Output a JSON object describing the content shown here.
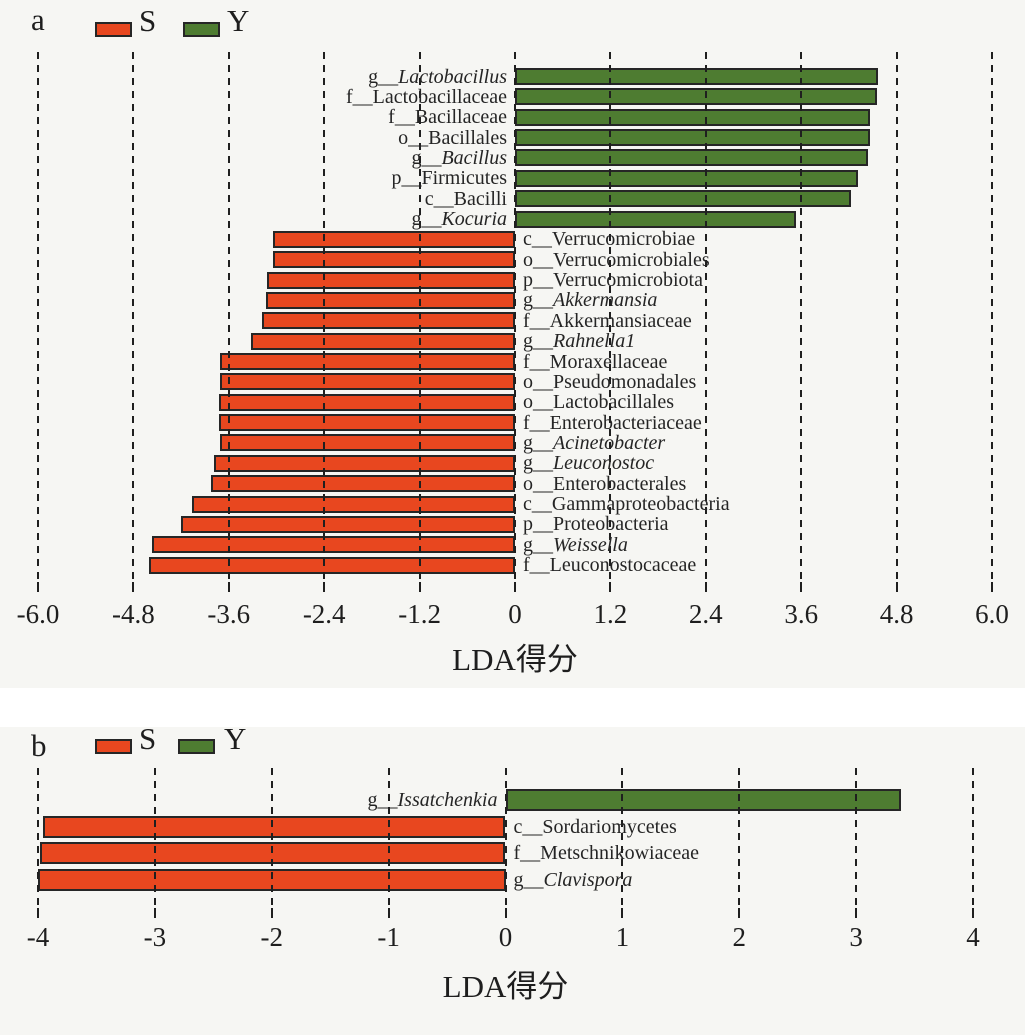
{
  "colors": {
    "s": "#e8471f",
    "y": "#4e7c31",
    "outline": "#262626",
    "grid": "#1f1f1f",
    "text": "#1e1e1e",
    "panel_bg": "#f6f6f3"
  },
  "chart_data": [
    {
      "type": "bar",
      "panel": "a",
      "orientation": "horizontal",
      "xlabel": "LDA得分",
      "xlim": [
        -6.0,
        6.0
      ],
      "xticks": [
        -6.0,
        -4.8,
        -3.6,
        -2.4,
        -1.2,
        0,
        1.2,
        2.4,
        3.6,
        4.8,
        6.0
      ],
      "xtick_labels": [
        "-6.0",
        "-4.8",
        "-3.6",
        "-2.4",
        "-1.2",
        "0",
        "1.2",
        "2.4",
        "3.6",
        "4.8",
        "6.0"
      ],
      "grid": "dashed-vertical",
      "legend": [
        {
          "name": "S",
          "color": "#e8471f"
        },
        {
          "name": "Y",
          "color": "#4e7c31"
        }
      ],
      "bars": [
        {
          "prefix": "g__",
          "name": "Lactobacillus",
          "italic": true,
          "group": "Y",
          "value": 4.56
        },
        {
          "prefix": "f__",
          "name": "Lactobacillaceae",
          "italic": false,
          "group": "Y",
          "value": 4.55
        },
        {
          "prefix": "f__",
          "name": "Bacillaceae",
          "italic": false,
          "group": "Y",
          "value": 4.47
        },
        {
          "prefix": "o__",
          "name": "Bacillales",
          "italic": false,
          "group": "Y",
          "value": 4.46
        },
        {
          "prefix": "g__",
          "name": "Bacillus",
          "italic": true,
          "group": "Y",
          "value": 4.44
        },
        {
          "prefix": "p__",
          "name": "Firmicutes",
          "italic": false,
          "group": "Y",
          "value": 4.31
        },
        {
          "prefix": "c__",
          "name": "Bacilli",
          "italic": false,
          "group": "Y",
          "value": 4.23
        },
        {
          "prefix": "g__",
          "name": "Kocuria",
          "italic": true,
          "group": "Y",
          "value": 3.54
        },
        {
          "prefix": "c__",
          "name": "Verrucomicrobiae",
          "italic": false,
          "group": "S",
          "value": -3.04
        },
        {
          "prefix": "o__",
          "name": "Verrucomicrobiales",
          "italic": false,
          "group": "S",
          "value": -3.05
        },
        {
          "prefix": "p__",
          "name": "Verrucomicrobiota",
          "italic": false,
          "group": "S",
          "value": -3.12
        },
        {
          "prefix": "g__",
          "name": "Akkermansia",
          "italic": true,
          "group": "S",
          "value": -3.13
        },
        {
          "prefix": "f__",
          "name": "Akkermansiaceae",
          "italic": false,
          "group": "S",
          "value": -3.18
        },
        {
          "prefix": "g__",
          "name": "Rahnella1",
          "italic": true,
          "group": "S",
          "value": -3.32
        },
        {
          "prefix": "f__",
          "name": "Moraxellaceae",
          "italic": false,
          "group": "S",
          "value": -3.71
        },
        {
          "prefix": "o__",
          "name": "Pseudomonadales",
          "italic": false,
          "group": "S",
          "value": -3.71
        },
        {
          "prefix": "o__",
          "name": "Lactobacillales",
          "italic": false,
          "group": "S",
          "value": -3.72
        },
        {
          "prefix": "f__",
          "name": "Enterobacteriaceae",
          "italic": false,
          "group": "S",
          "value": -3.72
        },
        {
          "prefix": "g__",
          "name": "Acinetobacter",
          "italic": true,
          "group": "S",
          "value": -3.71
        },
        {
          "prefix": "g__",
          "name": "Leuconostoc",
          "italic": true,
          "group": "S",
          "value": -3.78
        },
        {
          "prefix": "o__",
          "name": "Enterobacterales",
          "italic": false,
          "group": "S",
          "value": -3.82
        },
        {
          "prefix": "c__",
          "name": "Gammaproteobacteria",
          "italic": false,
          "group": "S",
          "value": -4.06
        },
        {
          "prefix": "p__",
          "name": "Proteobacteria",
          "italic": false,
          "group": "S",
          "value": -4.2
        },
        {
          "prefix": "g__",
          "name": "Weissella",
          "italic": true,
          "group": "S",
          "value": -4.56
        },
        {
          "prefix": "f__",
          "name": "Leuconostocaceae",
          "italic": false,
          "group": "S",
          "value": -4.6
        }
      ]
    },
    {
      "type": "bar",
      "panel": "b",
      "orientation": "horizontal",
      "xlabel": "LDA得分",
      "xlim": [
        -4,
        4
      ],
      "xticks": [
        -4,
        -3,
        -2,
        -1,
        0,
        1,
        2,
        3,
        4
      ],
      "xtick_labels": [
        "-4",
        "-3",
        "-2",
        "-1",
        "0",
        "1",
        "2",
        "3",
        "4"
      ],
      "grid": "dashed-vertical",
      "legend": [
        {
          "name": "S",
          "color": "#e8471f"
        },
        {
          "name": "Y",
          "color": "#4e7c31"
        }
      ],
      "bars": [
        {
          "prefix": "g__",
          "name": "Issatchenkia",
          "italic": true,
          "group": "Y",
          "value": 3.38
        },
        {
          "prefix": "c__",
          "name": "Sordariomycetes",
          "italic": false,
          "group": "S",
          "value": -3.96
        },
        {
          "prefix": "f__",
          "name": "Metschnikowiaceae",
          "italic": false,
          "group": "S",
          "value": -3.98
        },
        {
          "prefix": "g__",
          "name": "Clavispora",
          "italic": true,
          "group": "S",
          "value": -4.0
        }
      ]
    }
  ]
}
